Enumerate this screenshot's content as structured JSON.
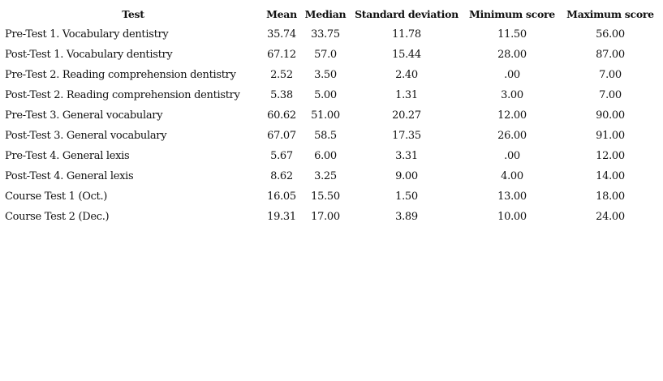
{
  "table": {
    "headers": [
      "Test",
      "Mean",
      "Median",
      "Standard deviation",
      "Minimum score",
      "Maximum score"
    ],
    "rows": [
      [
        "Pre-Test 1. Vocabulary dentistry",
        "35.74",
        "33.75",
        "11.78",
        "11.50",
        "56.00"
      ],
      [
        "Post-Test 1. Vocabulary dentistry",
        "67.12",
        "57.0",
        "15.44",
        "28.00",
        "87.00"
      ],
      [
        "Pre-Test 2. Reading comprehension dentistry",
        "2.52",
        "3.50",
        "2.40",
        ".00",
        "7.00"
      ],
      [
        "Post-Test 2. Reading comprehension dentistry",
        "5.38",
        "5.00",
        "1.31",
        "3.00",
        "7.00"
      ],
      [
        "Pre-Test 3. General vocabulary",
        "60.62",
        "51.00",
        "20.27",
        "12.00",
        "90.00"
      ],
      [
        "Post-Test 3. General vocabulary",
        "67.07",
        "58.5",
        "17.35",
        "26.00",
        "91.00"
      ],
      [
        "Pre-Test 4. General lexis",
        "5.67",
        "6.00",
        "3.31",
        ".00",
        "12.00"
      ],
      [
        "Post-Test 4. General lexis",
        "8.62",
        "3.25",
        "9.00",
        "4.00",
        "14.00"
      ],
      [
        "Course Test 1 (Oct.)",
        "16.05",
        "15.50",
        "1.50",
        "13.00",
        "18.00"
      ],
      [
        "Course Test 2 (Dec.)",
        "19.31",
        "17.00",
        "3.89",
        "10.00",
        "24.00"
      ]
    ]
  }
}
